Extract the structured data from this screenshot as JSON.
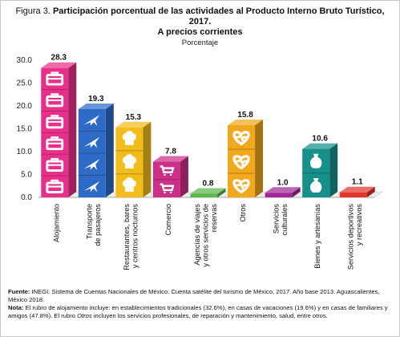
{
  "title": {
    "lead": "Figura 3.",
    "line1": "Participación porcentual de las actividades al Producto Interno Bruto Turístico,",
    "line2": "2017.",
    "line3": "A precios corrientes"
  },
  "colors": {
    "Alojamiento": "#e8308a",
    "Transporte de pasajeros": "#2e6bc7",
    "Restaurantes, bares y centros nocturnos": "#f2bc1a",
    "Comercio": "#cc2f88",
    "Agencias de viajes y otros servicios de reservas": "#5bb64c",
    "Otros": "#f2a81c",
    "Servicios culturales": "#a4279a",
    "Bienes y artesanías": "#16908a",
    "Servicios deportivos y recreativos": "#e0362c"
  },
  "chart_data": {
    "type": "bar",
    "unit_label": "Porcentaje",
    "categories": [
      "Alojamiento",
      "Transporte de pasajeros",
      "Restaurantes, bares y centros nocturnos",
      "Comercio",
      "Agencias de viajes y otros servicios de reservas",
      "Otros",
      "Servicios culturales",
      "Bienes y artesanías",
      "Servicios deportivos y recreativos"
    ],
    "category_label_lines": [
      [
        "Alojamiento"
      ],
      [
        "Transporte",
        "de pasajeros"
      ],
      [
        "Restaurantes, bares",
        "y centros nocturnos"
      ],
      [
        "Comercio"
      ],
      [
        "Agencias de viajes",
        "y otros servicios de",
        "reservas"
      ],
      [
        "Otros"
      ],
      [
        "Servicios",
        "culturales"
      ],
      [
        "Bienes y artesanías"
      ],
      [
        "Servicios deportivos",
        "y recreativos"
      ]
    ],
    "values": [
      28.3,
      19.3,
      15.3,
      7.8,
      0.8,
      15.8,
      1.0,
      10.6,
      1.1
    ],
    "value_labels": [
      "28.3",
      "19.3",
      "15.3",
      "7.8",
      "0.8",
      "15.8",
      "1.0",
      "10.6",
      "1.1"
    ],
    "icons": [
      "suitcase-icon",
      "airplane-icon",
      "chef-hat-icon",
      "shopping-cart-icon",
      "",
      "heart-pulse-icon",
      "",
      "vase-icon",
      ""
    ],
    "yticks": [
      "0.0",
      "5.0",
      "10.0",
      "15.0",
      "20.0",
      "25.0",
      "30.0"
    ],
    "ylim": [
      0,
      30
    ],
    "grid": false
  },
  "notes": {
    "fuente_label": "Fuente:",
    "fuente_text": "INEGI. Sistema de Cuentas Nacionales de México. Cuenta satélite del turismo de México, 2017. Año base 2013. Aguascalientes, México 2018.",
    "nota_label": "Nota:",
    "nota_text_1": "El rubro de alojamiento incluye: en establecimientos tradicionales (32.6%), en casas de vacaciones (19.6%) y en casas de familiares y amigos (47.8%). El rubro",
    "nota_otros": "Otros",
    "nota_text_2": "incluyen los servicios profesionales, de reparación y mantenimiento, salud, entre otros."
  }
}
